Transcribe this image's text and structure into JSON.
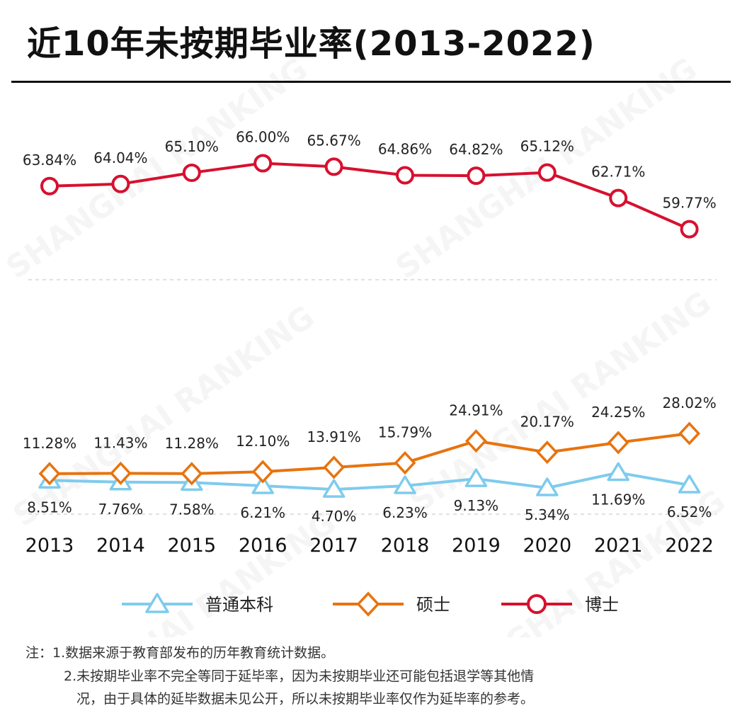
{
  "title": "近10年未按期毕业率(2013-2022)",
  "notes": {
    "line1": "注：1.数据来源于教育部发布的历年教育统计数据。",
    "line2": "2.未按期毕业率不完全等同于延毕率，因为未按期毕业还可能包括退学等其他情",
    "line3": "况，由于具体的延毕数据未见公开，所以未按期毕业率仅作为延毕率的参考。"
  },
  "watermark": "SHANGHAI RANKING",
  "chart_data": {
    "type": "line",
    "categories": [
      "2013",
      "2014",
      "2015",
      "2016",
      "2017",
      "2018",
      "2019",
      "2020",
      "2021",
      "2022"
    ],
    "unit": "%",
    "grid": "dashed horizontal",
    "legend_position": "bottom",
    "series": [
      {
        "name": "普通本科",
        "marker": "triangle",
        "color": "#7fcbee",
        "values": [
          8.51,
          7.76,
          7.58,
          6.21,
          4.7,
          6.23,
          9.13,
          5.34,
          11.69,
          6.52
        ],
        "labels": [
          "8.51%",
          "7.76%",
          "7.58%",
          "6.21%",
          "4.70%",
          "6.23%",
          "9.13%",
          "5.34%",
          "11.69%",
          "6.52%"
        ]
      },
      {
        "name": "硕士",
        "marker": "diamond",
        "color": "#e8730e",
        "values": [
          11.28,
          11.43,
          11.28,
          12.1,
          13.91,
          15.79,
          24.91,
          20.17,
          24.25,
          28.02
        ],
        "labels": [
          "11.28%",
          "11.43%",
          "11.28%",
          "12.10%",
          "13.91%",
          "15.79%",
          "24.91%",
          "20.17%",
          "24.25%",
          "28.02%"
        ]
      },
      {
        "name": "博士",
        "marker": "circle",
        "color": "#d7102f",
        "values": [
          63.84,
          64.04,
          65.1,
          66.0,
          65.67,
          64.86,
          64.82,
          65.12,
          62.71,
          59.77
        ],
        "labels": [
          "63.84%",
          "64.04%",
          "65.10%",
          "66.00%",
          "65.67%",
          "64.86%",
          "64.82%",
          "65.12%",
          "62.71%",
          "59.77%"
        ]
      }
    ]
  }
}
